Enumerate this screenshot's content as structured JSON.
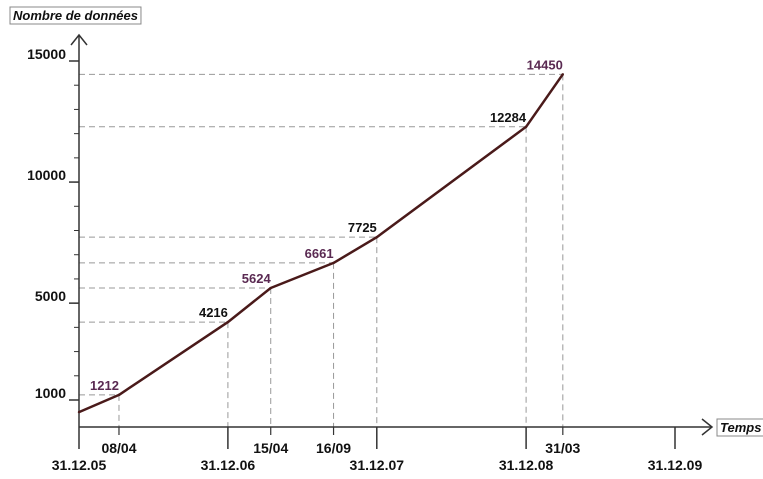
{
  "chart_data": {
    "type": "line",
    "ylabel": "Nombre de données",
    "xlabel": "Temps",
    "yticks": [
      {
        "value": 1000,
        "label": "1000"
      },
      {
        "value": 5000,
        "label": "5000"
      },
      {
        "value": 10000,
        "label": "10000"
      },
      {
        "value": 15000,
        "label": "15000"
      }
    ],
    "ylim": [
      0,
      15500
    ],
    "year_ticks": [
      {
        "date": "2005-12-31",
        "label": "31.12.05"
      },
      {
        "date": "2006-12-31",
        "label": "31.12.06"
      },
      {
        "date": "2007-12-31",
        "label": "31.12.07"
      },
      {
        "date": "2008-12-31",
        "label": "31.12.08"
      },
      {
        "date": "2009-12-31",
        "label": "31.12.09"
      }
    ],
    "date_ticks": [
      {
        "date": "2006-04-08",
        "label": "08/04"
      },
      {
        "date": "2007-04-15",
        "label": "15/04"
      },
      {
        "date": "2007-09-16",
        "label": "16/09"
      },
      {
        "date": "2009-03-31",
        "label": "31/03"
      }
    ],
    "series": [
      {
        "points": [
          {
            "date": "2005-12-31",
            "value": 500
          },
          {
            "date": "2006-04-08",
            "value": 1212,
            "label": "1212",
            "color": "#5a2a52"
          },
          {
            "date": "2006-12-31",
            "value": 4216,
            "label": "4216",
            "color": "#111111"
          },
          {
            "date": "2007-04-15",
            "value": 5624,
            "label": "5624",
            "color": "#5a2a52"
          },
          {
            "date": "2007-09-16",
            "value": 6661,
            "label": "6661",
            "color": "#5a2a52"
          },
          {
            "date": "2007-12-31",
            "value": 7725,
            "label": "7725",
            "color": "#111111"
          },
          {
            "date": "2008-12-31",
            "value": 12284,
            "label": "12284",
            "color": "#111111"
          },
          {
            "date": "2009-03-31",
            "value": 14450,
            "label": "14450",
            "color": "#5a2a52"
          }
        ]
      }
    ],
    "colors": {
      "line": "#4a1a1a",
      "axis": "#333333",
      "guide": "#999999",
      "highlight_label": "#5a2a52"
    }
  }
}
